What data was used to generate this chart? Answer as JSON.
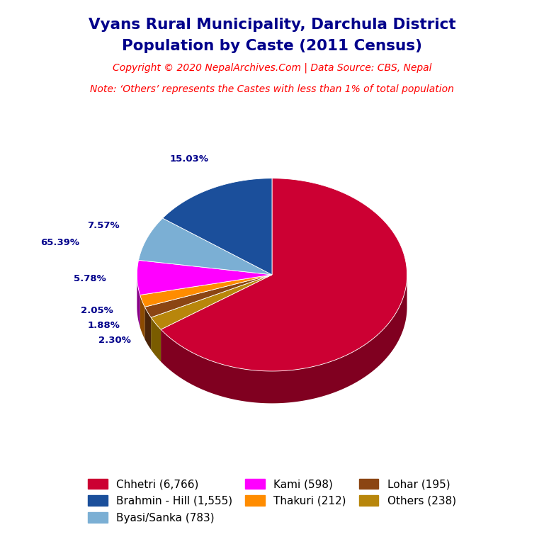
{
  "title_line1": "Vyans Rural Municipality, Darchula District",
  "title_line2": "Population by Caste (2011 Census)",
  "copyright": "Copyright © 2020 NepalArchives.Com | Data Source: CBS, Nepal",
  "note": "Note: ‘Others’ represents the Castes with less than 1% of total population",
  "labels": [
    "Chhetri",
    "Brahmin - Hill",
    "Byasi/Sanka",
    "Kami",
    "Thakuri",
    "Lohar",
    "Others"
  ],
  "values": [
    6766,
    1555,
    783,
    598,
    212,
    195,
    238
  ],
  "percentages": [
    65.39,
    15.03,
    7.57,
    5.78,
    2.05,
    1.88,
    2.3
  ],
  "colors": [
    "#CC0033",
    "#1B4F9B",
    "#7BAFD4",
    "#FF00FF",
    "#FF8C00",
    "#8B4513",
    "#B8860B"
  ],
  "dark_colors": [
    "#800020",
    "#0D2B5E",
    "#3A7FAA",
    "#880088",
    "#8B4A00",
    "#4A2409",
    "#7A5C00"
  ],
  "legend_labels": [
    "Chhetri (6,766)",
    "Brahmin - Hill (1,555)",
    "Byasi/Sanka (783)",
    "Kami (598)",
    "Thakuri (212)",
    "Lohar (195)",
    "Others (238)"
  ],
  "title_color": "#00008B",
  "copyright_color": "#FF0000",
  "note_color": "#FF0000",
  "pct_label_color": "#00008B",
  "background_color": "#FFFFFF",
  "pie_order": [
    0,
    6,
    5,
    4,
    3,
    2,
    1
  ],
  "startangle": 90
}
